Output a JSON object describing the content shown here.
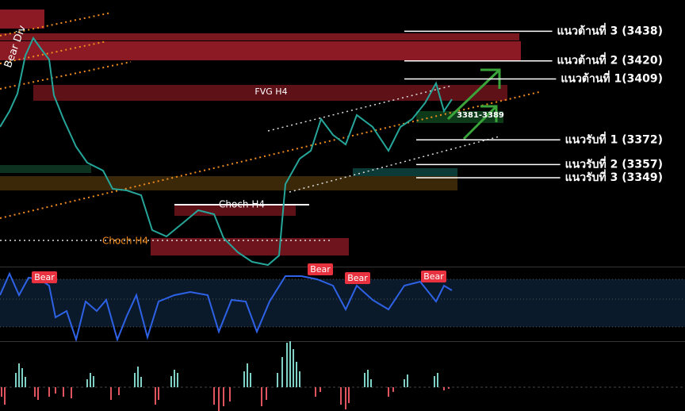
{
  "ylim": [
    3295,
    3457
  ],
  "levels": [
    {
      "kind": "resistance",
      "value": 3438,
      "label": "แนวต้านที่ 3 (3438)"
    },
    {
      "kind": "resistance",
      "value": 3420,
      "label": "แนวต้านที่ 2 (3420)"
    },
    {
      "kind": "resistance",
      "value": 3409,
      "label": "แนวต้านที่ 1(3409)"
    },
    {
      "kind": "support",
      "value": 3372,
      "label": "แนวรับที่ 1 (3372)"
    },
    {
      "kind": "support",
      "value": 3357,
      "label": "แนวรับที่ 2 (3357)"
    },
    {
      "kind": "support",
      "value": 3349,
      "label": "แนวรับที่ 3 (3349)"
    }
  ],
  "zones": {
    "fvg": "FVG H4",
    "range": "3381-3389"
  },
  "annotations": {
    "choch_upper": "Choch H4",
    "choch_lower": "Choch H4",
    "bear_div": "Bear Div"
  },
  "rsi_signals": [
    "Bear",
    "Bear",
    "Bear",
    "Bear"
  ]
}
